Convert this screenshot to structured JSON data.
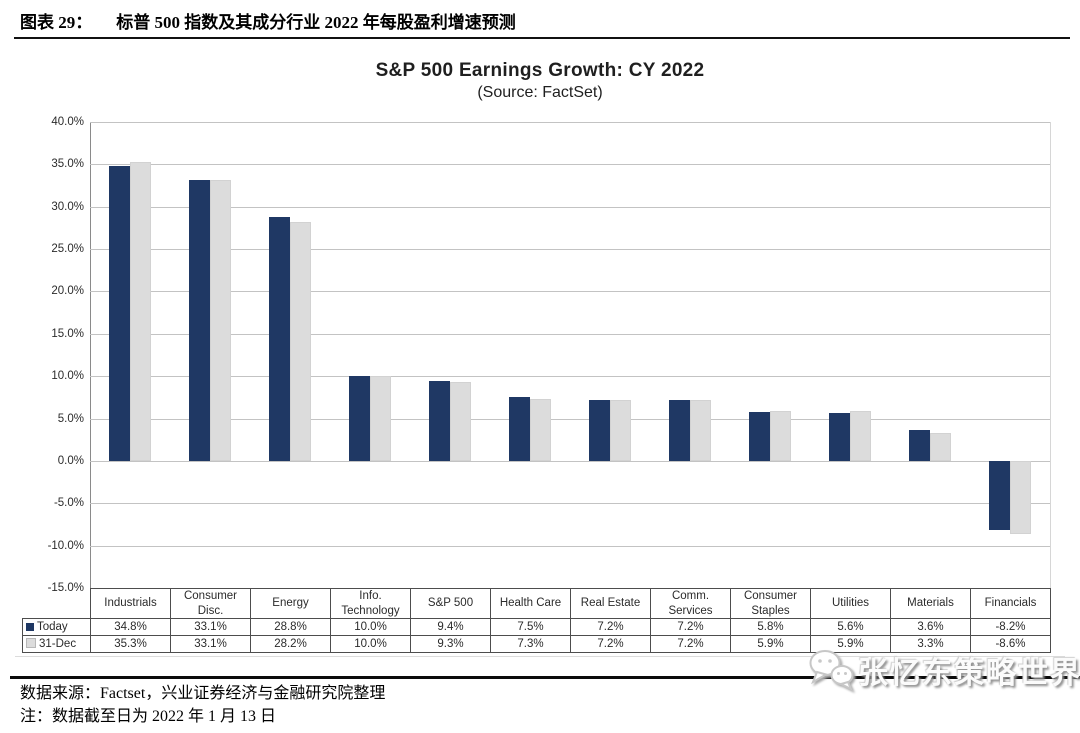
{
  "header": {
    "label": "图表 29：",
    "title": "标普 500 指数及其成分行业 2022 年每股盈利增速预测"
  },
  "chart_data": {
    "type": "bar",
    "title": "S&P 500 Earnings Growth: CY 2022",
    "subtitle": "(Source: FactSet)",
    "categories": [
      "Industrials",
      "Consumer Disc.",
      "Energy",
      "Info. Technology",
      "S&P 500",
      "Health Care",
      "Real Estate",
      "Comm. Services",
      "Consumer Staples",
      "Utilities",
      "Materials",
      "Financials"
    ],
    "series": [
      {
        "name": "Today",
        "color": "#1F3864",
        "values": [
          34.8,
          33.1,
          28.8,
          10.0,
          9.4,
          7.5,
          7.2,
          7.2,
          5.8,
          5.6,
          3.6,
          -8.2
        ]
      },
      {
        "name": "31-Dec",
        "color": "#DCDCDC",
        "values": [
          35.3,
          33.1,
          28.2,
          10.0,
          9.3,
          7.3,
          7.2,
          7.2,
          5.9,
          5.9,
          3.3,
          -8.6
        ]
      }
    ],
    "ylim": [
      -15,
      40
    ],
    "yticks": [
      "40.0%",
      "35.0%",
      "30.0%",
      "25.0%",
      "20.0%",
      "15.0%",
      "10.0%",
      "5.0%",
      "0.0%",
      "-5.0%",
      "-10.0%",
      "-15.0%"
    ],
    "grid": true,
    "legend_position": "table-left",
    "value_format": "percent_1dp"
  },
  "footer": {
    "source": "数据来源：Factset，兴业证券经济与金融研究院整理",
    "note": "注：数据截至日为 2022 年 1 月 13 日"
  },
  "watermark": {
    "text": "张忆东策略世界",
    "icon": "wechat-icon"
  }
}
